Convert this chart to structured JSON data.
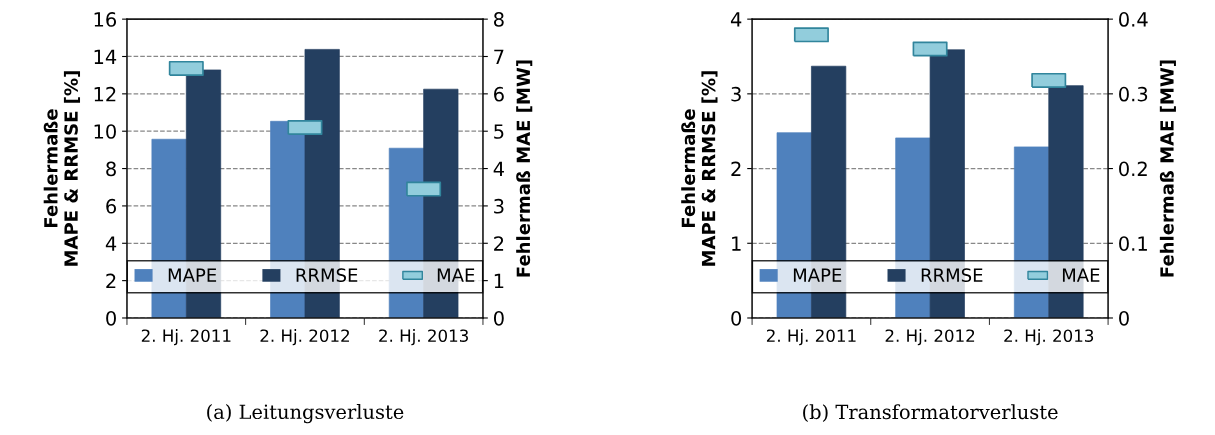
{
  "chart_data": [
    {
      "type": "bar",
      "title": "(a) Leitungsverluste",
      "ylabel": "Fehlermaße\nMAPE & RRMSE [%]",
      "y2label": "Fehlermaß MAE [MW]",
      "categories": [
        "2. Hj. 2011",
        "2. Hj. 2012",
        "2. Hj. 2013"
      ],
      "series": [
        {
          "name": "MAPE",
          "color": "#4f81bd",
          "values": [
            9.57,
            10.53,
            9.09
          ]
        },
        {
          "name": "RRMSE",
          "color": "#243f60",
          "values": [
            13.28,
            14.38,
            12.25
          ]
        },
        {
          "name": "MAE",
          "type": "scatter",
          "axis": "y2",
          "color": "#92cddc",
          "values": [
            6.68,
            5.1,
            3.45
          ]
        }
      ],
      "ylim": [
        0,
        16
      ],
      "yticks": [
        0,
        2,
        4,
        6,
        8,
        10,
        12,
        14,
        16
      ],
      "y2lim": [
        0,
        8
      ],
      "y2ticks": [
        0,
        1,
        2,
        3,
        4,
        5,
        6,
        7,
        8
      ],
      "grid": "y",
      "legend": "bottom"
    },
    {
      "type": "bar",
      "title": "(b) Transformatorverluste",
      "ylabel": "Fehlermaße\nMAPE & RRMSE [%]",
      "y2label": "Fehlermaß MAE [MW]",
      "categories": [
        "2. Hj. 2011",
        "2. Hj. 2012",
        "2. Hj. 2013"
      ],
      "series": [
        {
          "name": "MAPE",
          "color": "#4f81bd",
          "values": [
            2.48,
            2.41,
            2.29
          ]
        },
        {
          "name": "RRMSE",
          "color": "#243f60",
          "values": [
            3.37,
            3.59,
            3.11
          ]
        },
        {
          "name": "MAE",
          "type": "scatter",
          "axis": "y2",
          "color": "#92cddc",
          "values": [
            0.379,
            0.36,
            0.318
          ]
        }
      ],
      "ylim": [
        0,
        4
      ],
      "yticks": [
        0,
        1,
        2,
        3,
        4
      ],
      "y2lim": [
        0,
        0.4
      ],
      "y2ticks": [
        0,
        0.1,
        0.2,
        0.3,
        0.4
      ],
      "grid": "y",
      "legend": "bottom"
    }
  ]
}
